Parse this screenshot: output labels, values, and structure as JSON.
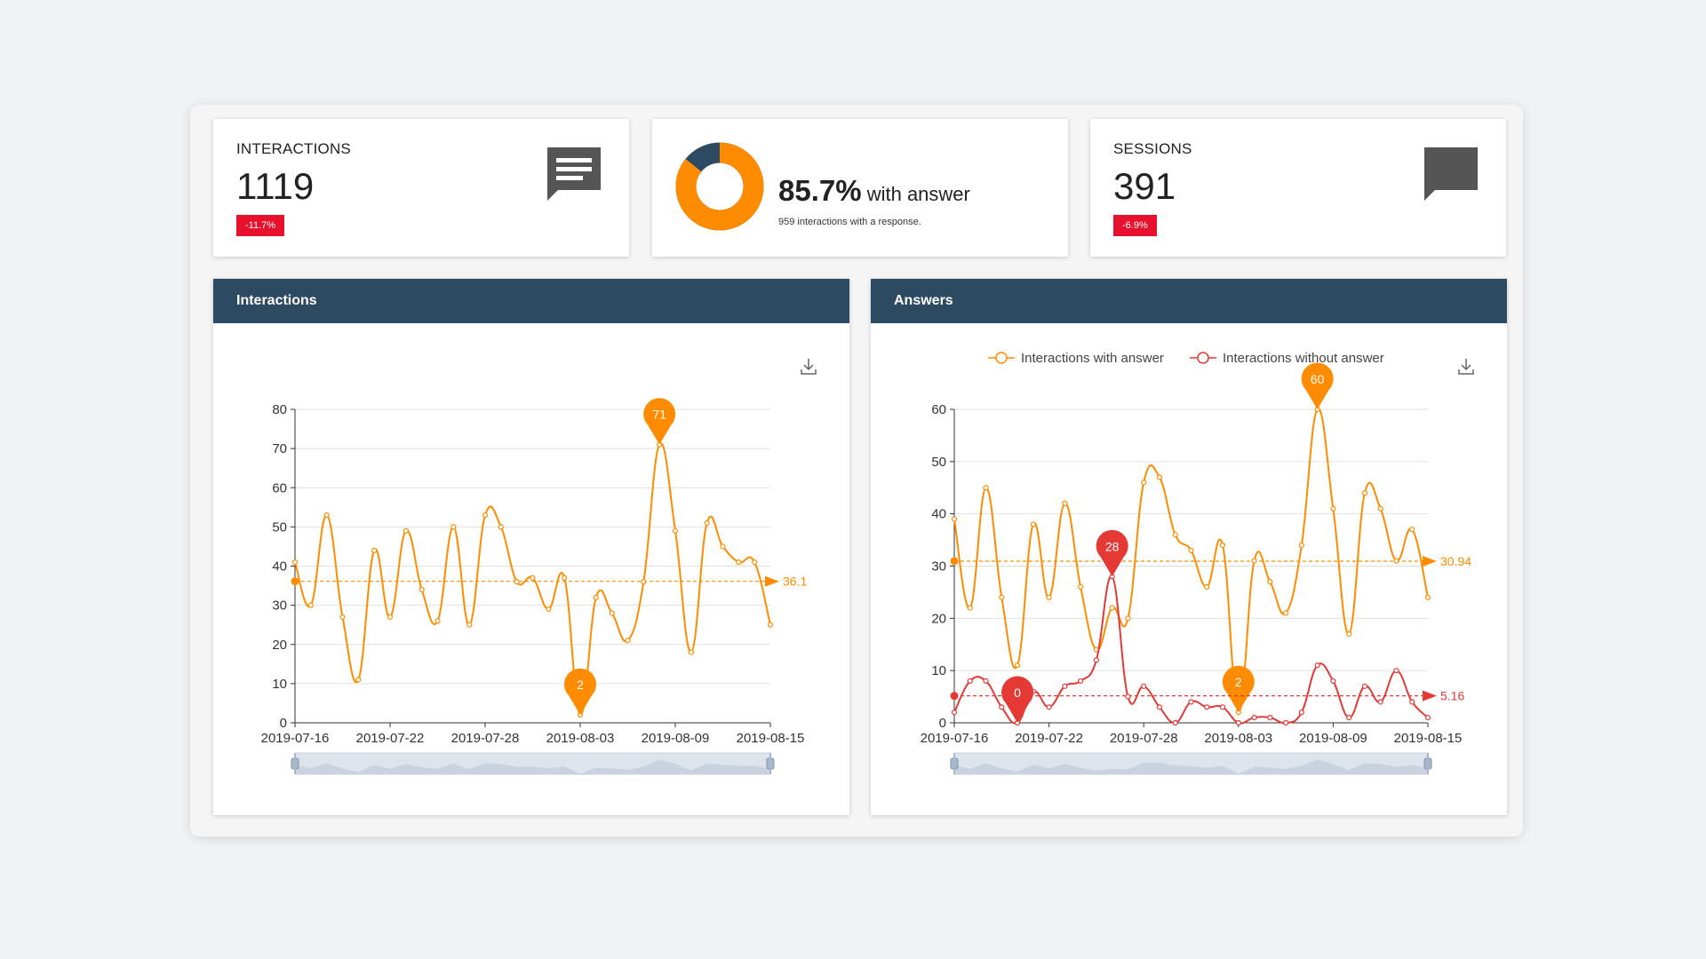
{
  "colors": {
    "accent": "#ff8c00",
    "secondary": "#e53935",
    "header": "#2d4a63",
    "badge_negative": "#e8112d",
    "icon": "#555555",
    "donut_dark": "#2d4a63",
    "gridline": "#e0e0e0",
    "zoom_fill": "#dde4ec"
  },
  "kpis": {
    "interactions": {
      "title": "INTERACTIONS",
      "value": "1119",
      "change": "-11.7%",
      "icon": "message-text-icon"
    },
    "answer": {
      "percent_value": 85.7,
      "percent": "85.7%",
      "label": "with answer",
      "subtitle": "959 interactions with a response."
    },
    "sessions": {
      "title": "SESSIONS",
      "value": "391",
      "change": "-6.9%",
      "icon": "message-icon"
    }
  },
  "panels": {
    "interactions": {
      "title": "Interactions",
      "download_icon": "download-icon"
    },
    "answers": {
      "title": "Answers",
      "download_icon": "download-icon"
    }
  },
  "chart_data": [
    {
      "type": "line",
      "x": [
        "2019-07-16",
        "2019-07-17",
        "2019-07-18",
        "2019-07-19",
        "2019-07-20",
        "2019-07-21",
        "2019-07-22",
        "2019-07-23",
        "2019-07-24",
        "2019-07-25",
        "2019-07-26",
        "2019-07-27",
        "2019-07-28",
        "2019-07-29",
        "2019-07-30",
        "2019-07-31",
        "2019-08-01",
        "2019-08-02",
        "2019-08-03",
        "2019-08-04",
        "2019-08-05",
        "2019-08-06",
        "2019-08-07",
        "2019-08-08",
        "2019-08-09",
        "2019-08-10",
        "2019-08-11",
        "2019-08-12",
        "2019-08-13",
        "2019-08-14",
        "2019-08-15"
      ],
      "xticks": [
        "2019-07-16",
        "2019-07-22",
        "2019-07-28",
        "2019-08-03",
        "2019-08-09",
        "2019-08-15"
      ],
      "ylim": [
        0,
        80
      ],
      "yticks": [
        0,
        10,
        20,
        30,
        40,
        50,
        60,
        70,
        80
      ],
      "grid": true,
      "series": [
        {
          "values": [
            41,
            30,
            53,
            27,
            11,
            44,
            27,
            49,
            34,
            26,
            50,
            25,
            53,
            50,
            36,
            37,
            29,
            37,
            2,
            32,
            28,
            21,
            36,
            71,
            49,
            18,
            51,
            45,
            41,
            41,
            25
          ],
          "markers": {
            "max": "71",
            "min": "2"
          },
          "average": 36.1,
          "average_label": "36.1"
        }
      ]
    },
    {
      "type": "line",
      "x": [
        "2019-07-16",
        "2019-07-17",
        "2019-07-18",
        "2019-07-19",
        "2019-07-20",
        "2019-07-21",
        "2019-07-22",
        "2019-07-23",
        "2019-07-24",
        "2019-07-25",
        "2019-07-26",
        "2019-07-27",
        "2019-07-28",
        "2019-07-29",
        "2019-07-30",
        "2019-07-31",
        "2019-08-01",
        "2019-08-02",
        "2019-08-03",
        "2019-08-04",
        "2019-08-05",
        "2019-08-06",
        "2019-08-07",
        "2019-08-08",
        "2019-08-09",
        "2019-08-10",
        "2019-08-11",
        "2019-08-12",
        "2019-08-13",
        "2019-08-14",
        "2019-08-15"
      ],
      "xticks": [
        "2019-07-16",
        "2019-07-22",
        "2019-07-28",
        "2019-08-03",
        "2019-08-09",
        "2019-08-15"
      ],
      "ylim": [
        0,
        60
      ],
      "yticks": [
        0,
        10,
        20,
        30,
        40,
        50,
        60
      ],
      "grid": true,
      "legend": "top",
      "series": [
        {
          "name": "Interactions with answer",
          "values": [
            39,
            22,
            45,
            24,
            11,
            38,
            24,
            42,
            26,
            14,
            22,
            20,
            46,
            47,
            36,
            33,
            26,
            34,
            2,
            31,
            27,
            21,
            34,
            60,
            41,
            17,
            44,
            41,
            31,
            37,
            24
          ],
          "markers": {
            "max": "60",
            "min": "2"
          },
          "average": 30.94,
          "average_label": "30.94"
        },
        {
          "name": "Interactions without answer",
          "values": [
            2,
            8,
            8,
            3,
            0,
            6,
            3,
            7,
            8,
            12,
            28,
            5,
            7,
            3,
            0,
            4,
            3,
            3,
            0,
            1,
            1,
            0,
            2,
            11,
            8,
            1,
            7,
            4,
            10,
            4,
            1
          ],
          "markers": {
            "max": "28",
            "min": "0"
          },
          "average": 5.16,
          "average_label": "5.16"
        }
      ]
    }
  ]
}
